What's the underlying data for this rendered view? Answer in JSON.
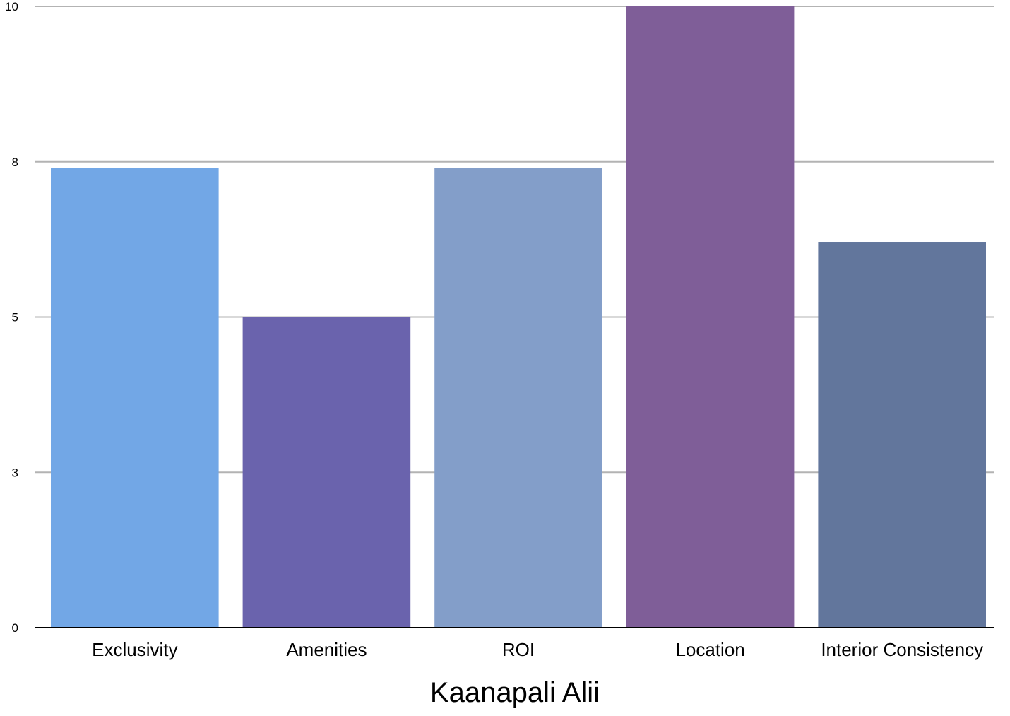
{
  "chart_data": {
    "type": "bar",
    "title": "",
    "xlabel": "Kaanapali Alii",
    "ylabel": "",
    "categories": [
      "Exclusivity",
      "Amenities",
      "ROI",
      "Location",
      "Interior Consistency"
    ],
    "values": [
      7.4,
      5,
      7.4,
      10,
      6.2
    ],
    "bar_colors": [
      "#72a7e6",
      "#6a63ad",
      "#839ec9",
      "#7f5e98",
      "#62769c"
    ],
    "yticks": [
      {
        "value": 0,
        "label": "0"
      },
      {
        "value": 2.5,
        "label": "3"
      },
      {
        "value": 5,
        "label": "5"
      },
      {
        "value": 7.5,
        "label": "8"
      },
      {
        "value": 10,
        "label": "10"
      }
    ],
    "ylim": [
      0,
      10
    ],
    "grid": true,
    "legend": "none"
  }
}
